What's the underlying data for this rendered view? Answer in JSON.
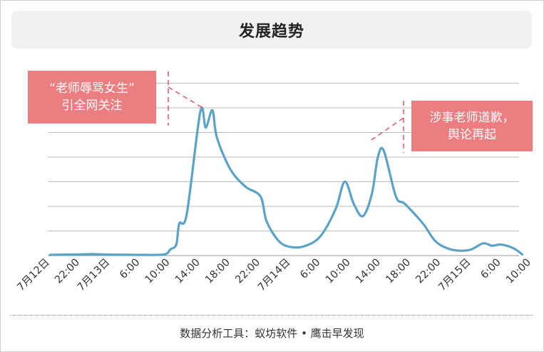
{
  "title": "发展趋势",
  "footer": "数据分析工具：蚁坊软件 • 鹰击早发现",
  "colors": {
    "line": "#5ba3c6",
    "callout": "#ec7d80",
    "dash": "#e05a6a",
    "grid": "#bdbdbd",
    "axis": "#999999"
  },
  "callouts": [
    {
      "line1": "“老师辱骂女生”",
      "line2": "引全网关注"
    },
    {
      "line1": "涉事老师道歉，",
      "line2": "舆论再起"
    }
  ],
  "chart_data": {
    "type": "line",
    "x": [
      "7月12日",
      "22:00",
      "7月13日",
      "6:00",
      "10:00",
      "14:00",
      "18:00",
      "22:00",
      "7月14日",
      "6:00",
      "10:00",
      "14:00",
      "18:00",
      "22:00",
      "7月15日",
      "6:00",
      "10:00"
    ],
    "xlabel": "",
    "ylabel": "",
    "grid": true,
    "ylim": [
      0,
      7
    ],
    "series": [
      {
        "values": [
          [
            0,
            0.03
          ],
          [
            1,
            0.05
          ],
          [
            1.4,
            0.06
          ],
          [
            2,
            0.04
          ],
          [
            3,
            0.03
          ],
          [
            3.8,
            0.05
          ],
          [
            4,
            0.25
          ],
          [
            4.2,
            0.45
          ],
          [
            4.3,
            1.3
          ],
          [
            4.55,
            1.7
          ],
          [
            5,
            5.85
          ],
          [
            5.18,
            5.2
          ],
          [
            5.4,
            5.9
          ],
          [
            5.55,
            4.8
          ],
          [
            6,
            3.5
          ],
          [
            6.5,
            2.8
          ],
          [
            7,
            2.4
          ],
          [
            7.2,
            1.4
          ],
          [
            7.6,
            0.6
          ],
          [
            8,
            0.35
          ],
          [
            8.5,
            0.4
          ],
          [
            9,
            0.8
          ],
          [
            9.5,
            1.9
          ],
          [
            9.8,
            3.0
          ],
          [
            10.1,
            2.1
          ],
          [
            10.4,
            1.6
          ],
          [
            10.7,
            2.5
          ],
          [
            10.9,
            4.0
          ],
          [
            11.1,
            4.25
          ],
          [
            11.5,
            2.4
          ],
          [
            11.8,
            2.1
          ],
          [
            12.4,
            1.3
          ],
          [
            12.8,
            0.6
          ],
          [
            13.2,
            0.3
          ],
          [
            13.6,
            0.2
          ],
          [
            14,
            0.25
          ],
          [
            14.4,
            0.5
          ],
          [
            14.7,
            0.4
          ],
          [
            15,
            0.45
          ],
          [
            15.4,
            0.3
          ],
          [
            15.7,
            0.05
          ]
        ]
      }
    ]
  }
}
